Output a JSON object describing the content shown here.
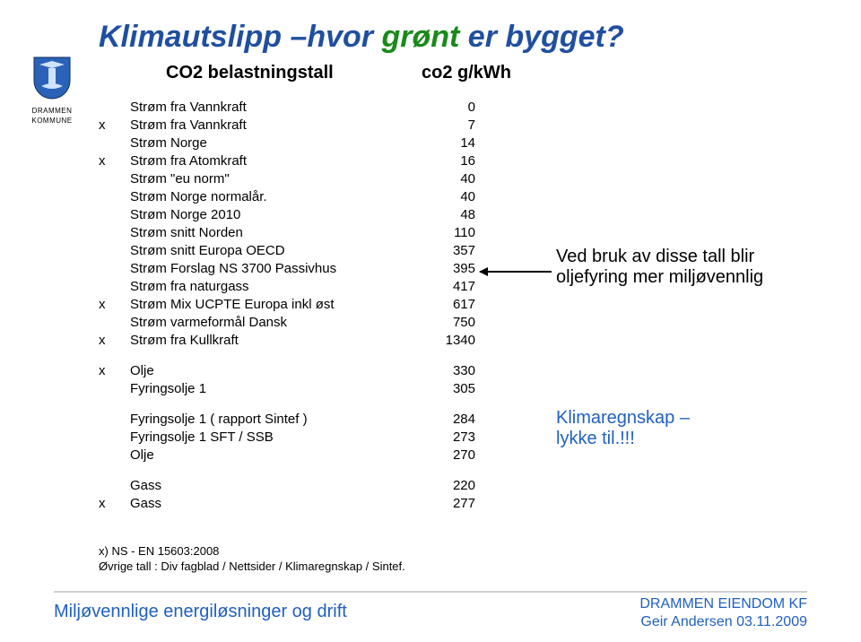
{
  "title_prefix": "Klimautslipp –hvor ",
  "title_green": "grønt",
  "title_suffix": " er bygget?",
  "sub_left": "CO2 belastningstall",
  "sub_right": "co2 g/kWh",
  "logo_line1": "DRAMMEN",
  "logo_line2": "KOMMUNE",
  "rows": [
    {
      "x": "",
      "label": "Strøm fra Vannkraft",
      "val": "0"
    },
    {
      "x": "x",
      "label": "Strøm fra Vannkraft",
      "val": "7"
    },
    {
      "x": "",
      "label": "Strøm Norge",
      "val": "14"
    },
    {
      "x": "x",
      "label": "Strøm fra Atomkraft",
      "val": "16"
    },
    {
      "x": "",
      "label": "Strøm \"eu norm\"",
      "val": "40"
    },
    {
      "x": "",
      "label": "Strøm Norge normalår.",
      "val": "40"
    },
    {
      "x": "",
      "label": "Strøm Norge 2010",
      "val": "48"
    },
    {
      "x": "",
      "label": "Strøm snitt Norden",
      "val": "110"
    },
    {
      "x": "",
      "label": "Strøm snitt Europa OECD",
      "val": "357"
    },
    {
      "x": "",
      "label": "Strøm Forslag NS 3700 Passivhus",
      "val": "395"
    },
    {
      "x": "",
      "label": "Strøm fra naturgass",
      "val": "417"
    },
    {
      "x": "x",
      "label": "Strøm Mix UCPTE Europa inkl øst",
      "val": "617"
    },
    {
      "x": "",
      "label": "Strøm varmeformål Dansk",
      "val": "750"
    },
    {
      "x": "x",
      "label": "Strøm fra Kullkraft",
      "val": "1340"
    }
  ],
  "rows2": [
    {
      "x": "x",
      "label": "Olje",
      "val": "330"
    },
    {
      "x": "",
      "label": "Fyringsolje 1",
      "val": "305"
    }
  ],
  "rows3": [
    {
      "x": "",
      "label": "Fyringsolje 1 ( rapport Sintef )",
      "val": "284"
    },
    {
      "x": "",
      "label": "Fyringsolje 1 SFT / SSB",
      "val": "273"
    },
    {
      "x": "",
      "label": "Olje",
      "val": "270"
    }
  ],
  "rows4": [
    {
      "x": "",
      "label": "Gass",
      "val": "220"
    },
    {
      "x": "x",
      "label": "Gass",
      "val": "277"
    }
  ],
  "annot_black_l1": "Ved bruk av disse tall blir",
  "annot_black_l2": "oljefyring mer miljøvennlig",
  "annot_blue_l1": "Klimaregnskap –",
  "annot_blue_l2": "lykke til.!!!",
  "footnote1": "x) NS - EN 15603:2008",
  "footnote2": "Øvrige tall : Div fagblad / Nettsider / Klimaregnskap / Sintef.",
  "footer_left": "Miljøvennlige energiløsninger og drift",
  "footer_right_l1": "DRAMMEN EIENDOM KF",
  "footer_right_l2": "Geir Andersen 03.11.2009",
  "colors": {
    "title_base": "#1f4fa0",
    "title_green": "#1a8a1a",
    "annot_blue": "#2060c0",
    "footer_blue": "#2060c0",
    "rule": "#cfcfcf",
    "text": "#000000",
    "bg": "#ffffff"
  }
}
